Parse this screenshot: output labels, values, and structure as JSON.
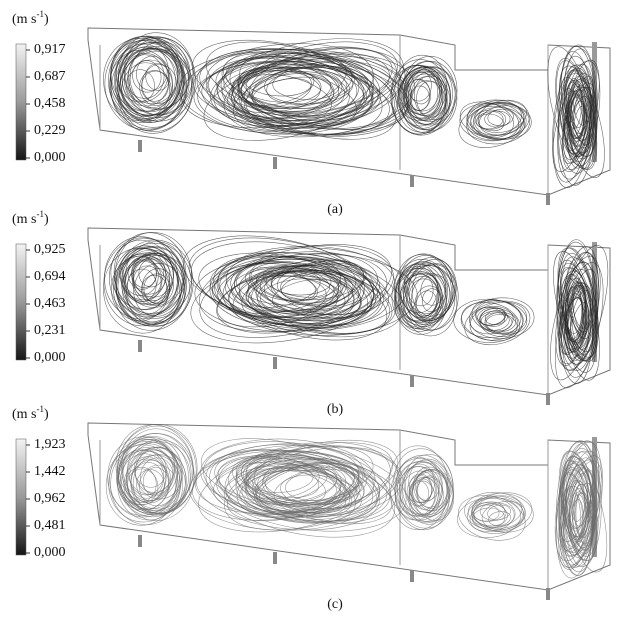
{
  "panels": [
    {
      "caption": "(a)",
      "colorbar": {
        "unit": {
          "prefix": "(m s",
          "exponent": "-1",
          "suffix": ")"
        },
        "ticks": [
          "0,917",
          "0,687",
          "0,458",
          "0,229",
          "0,000"
        ]
      }
    },
    {
      "caption": "(b)",
      "colorbar": {
        "unit": {
          "prefix": "(m s",
          "exponent": "-1",
          "suffix": ")"
        },
        "ticks": [
          "0,925",
          "0,694",
          "0,463",
          "0,231",
          "0,000"
        ]
      }
    },
    {
      "caption": "(c)",
      "colorbar": {
        "unit": {
          "prefix": "(m s",
          "exponent": "-1",
          "suffix": ")"
        },
        "ticks": [
          "1,923",
          "1,442",
          "0,962",
          "0,481",
          "0,000"
        ]
      }
    }
  ]
}
